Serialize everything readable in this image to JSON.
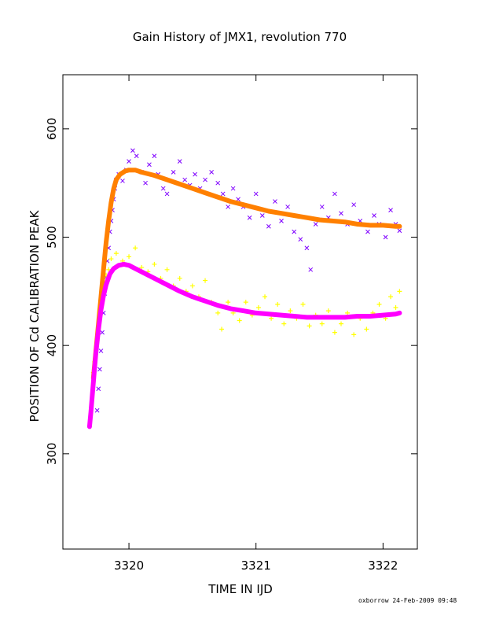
{
  "chart_data": {
    "type": "scatter",
    "title": "Gain History of JMX1, revolution 770",
    "xlabel": "TIME IN IJD",
    "ylabel": "POSITION OF Cd CALIBRATION PEAK",
    "xlim": [
      3319.48,
      3322.27
    ],
    "ylim": [
      212,
      650
    ],
    "xticks": [
      3320,
      3321,
      3322
    ],
    "xtick_labels": [
      "3320",
      "3321",
      "3322"
    ],
    "yticks": [
      300,
      400,
      500,
      600
    ],
    "ytick_labels": [
      "300",
      "400",
      "500",
      "600"
    ],
    "grid": false,
    "series": [
      {
        "kind": "scatter-x",
        "color": "#7f00ff",
        "points": [
          [
            3319.75,
            340
          ],
          [
            3319.76,
            360
          ],
          [
            3319.77,
            378
          ],
          [
            3319.78,
            395
          ],
          [
            3319.79,
            412
          ],
          [
            3319.8,
            430
          ],
          [
            3319.81,
            448
          ],
          [
            3319.82,
            463
          ],
          [
            3319.83,
            478
          ],
          [
            3319.84,
            490
          ],
          [
            3319.85,
            505
          ],
          [
            3319.86,
            515
          ],
          [
            3319.87,
            525
          ],
          [
            3319.88,
            535
          ],
          [
            3319.89,
            545
          ],
          [
            3319.9,
            553
          ],
          [
            3319.92,
            558
          ],
          [
            3319.95,
            552
          ],
          [
            3319.98,
            562
          ],
          [
            3320.0,
            570
          ],
          [
            3320.03,
            580
          ],
          [
            3320.06,
            575
          ],
          [
            3320.1,
            560
          ],
          [
            3320.13,
            550
          ],
          [
            3320.16,
            567
          ],
          [
            3320.2,
            575
          ],
          [
            3320.23,
            558
          ],
          [
            3320.27,
            545
          ],
          [
            3320.3,
            540
          ],
          [
            3320.35,
            560
          ],
          [
            3320.4,
            570
          ],
          [
            3320.44,
            553
          ],
          [
            3320.48,
            548
          ],
          [
            3320.52,
            558
          ],
          [
            3320.56,
            545
          ],
          [
            3320.6,
            553
          ],
          [
            3320.65,
            560
          ],
          [
            3320.7,
            550
          ],
          [
            3320.74,
            540
          ],
          [
            3320.78,
            528
          ],
          [
            3320.82,
            545
          ],
          [
            3320.86,
            535
          ],
          [
            3320.9,
            528
          ],
          [
            3320.95,
            518
          ],
          [
            3321.0,
            540
          ],
          [
            3321.05,
            520
          ],
          [
            3321.1,
            510
          ],
          [
            3321.15,
            533
          ],
          [
            3321.2,
            515
          ],
          [
            3321.25,
            528
          ],
          [
            3321.3,
            505
          ],
          [
            3321.35,
            498
          ],
          [
            3321.4,
            490
          ],
          [
            3321.43,
            470
          ],
          [
            3321.47,
            512
          ],
          [
            3321.52,
            528
          ],
          [
            3321.57,
            518
          ],
          [
            3321.62,
            540
          ],
          [
            3321.67,
            522
          ],
          [
            3321.72,
            512
          ],
          [
            3321.77,
            530
          ],
          [
            3321.82,
            515
          ],
          [
            3321.88,
            505
          ],
          [
            3321.93,
            520
          ],
          [
            3321.97,
            512
          ],
          [
            3322.02,
            500
          ],
          [
            3322.06,
            525
          ],
          [
            3322.1,
            512
          ],
          [
            3322.13,
            506
          ]
        ]
      },
      {
        "kind": "scatter-plus",
        "color": "#ffff00",
        "points": [
          [
            3319.72,
            375
          ],
          [
            3319.73,
            385
          ],
          [
            3319.74,
            395
          ],
          [
            3319.75,
            405
          ],
          [
            3319.76,
            415
          ],
          [
            3319.77,
            425
          ],
          [
            3319.78,
            435
          ],
          [
            3319.79,
            445
          ],
          [
            3319.8,
            455
          ],
          [
            3319.82,
            465
          ],
          [
            3319.84,
            470
          ],
          [
            3319.86,
            480
          ],
          [
            3319.9,
            485
          ],
          [
            3319.95,
            478
          ],
          [
            3320.0,
            482
          ],
          [
            3320.05,
            490
          ],
          [
            3320.1,
            472
          ],
          [
            3320.15,
            468
          ],
          [
            3320.2,
            475
          ],
          [
            3320.25,
            462
          ],
          [
            3320.3,
            470
          ],
          [
            3320.35,
            455
          ],
          [
            3320.4,
            462
          ],
          [
            3320.45,
            450
          ],
          [
            3320.5,
            455
          ],
          [
            3320.55,
            445
          ],
          [
            3320.6,
            460
          ],
          [
            3320.65,
            440
          ],
          [
            3320.7,
            430
          ],
          [
            3320.73,
            415
          ],
          [
            3320.78,
            440
          ],
          [
            3320.82,
            430
          ],
          [
            3320.87,
            423
          ],
          [
            3320.92,
            440
          ],
          [
            3320.97,
            428
          ],
          [
            3321.02,
            435
          ],
          [
            3321.07,
            445
          ],
          [
            3321.12,
            425
          ],
          [
            3321.17,
            438
          ],
          [
            3321.22,
            420
          ],
          [
            3321.27,
            432
          ],
          [
            3321.32,
            425
          ],
          [
            3321.37,
            438
          ],
          [
            3321.42,
            418
          ],
          [
            3321.47,
            428
          ],
          [
            3321.52,
            420
          ],
          [
            3321.57,
            432
          ],
          [
            3321.62,
            412
          ],
          [
            3321.67,
            420
          ],
          [
            3321.72,
            430
          ],
          [
            3321.77,
            410
          ],
          [
            3321.82,
            425
          ],
          [
            3321.87,
            415
          ],
          [
            3321.92,
            430
          ],
          [
            3321.97,
            438
          ],
          [
            3322.02,
            425
          ],
          [
            3322.06,
            445
          ],
          [
            3322.1,
            435
          ],
          [
            3322.13,
            450
          ]
        ]
      },
      {
        "kind": "fit-line",
        "color": "#ff8000",
        "points": [
          [
            3319.72,
            370
          ],
          [
            3319.74,
            395
          ],
          [
            3319.76,
            420
          ],
          [
            3319.78,
            445
          ],
          [
            3319.8,
            470
          ],
          [
            3319.82,
            495
          ],
          [
            3319.84,
            515
          ],
          [
            3319.86,
            532
          ],
          [
            3319.88,
            545
          ],
          [
            3319.9,
            553
          ],
          [
            3319.93,
            558
          ],
          [
            3319.97,
            561
          ],
          [
            3320.0,
            562
          ],
          [
            3320.05,
            562
          ],
          [
            3320.1,
            560
          ],
          [
            3320.2,
            557
          ],
          [
            3320.3,
            553
          ],
          [
            3320.4,
            549
          ],
          [
            3320.5,
            545
          ],
          [
            3320.6,
            541
          ],
          [
            3320.7,
            537
          ],
          [
            3320.8,
            533
          ],
          [
            3320.9,
            530
          ],
          [
            3321.0,
            527
          ],
          [
            3321.1,
            524
          ],
          [
            3321.2,
            522
          ],
          [
            3321.3,
            520
          ],
          [
            3321.4,
            518
          ],
          [
            3321.5,
            516
          ],
          [
            3321.6,
            515
          ],
          [
            3321.7,
            514
          ],
          [
            3321.8,
            512
          ],
          [
            3321.9,
            511
          ],
          [
            3322.0,
            511
          ],
          [
            3322.1,
            510
          ],
          [
            3322.13,
            510
          ]
        ]
      },
      {
        "kind": "fit-line",
        "color": "#ff00ff",
        "points": [
          [
            3319.69,
            325
          ],
          [
            3319.7,
            338
          ],
          [
            3319.71,
            352
          ],
          [
            3319.72,
            366
          ],
          [
            3319.73,
            380
          ],
          [
            3319.74,
            393
          ],
          [
            3319.76,
            415
          ],
          [
            3319.78,
            433
          ],
          [
            3319.8,
            446
          ],
          [
            3319.82,
            456
          ],
          [
            3319.85,
            466
          ],
          [
            3319.88,
            471
          ],
          [
            3319.92,
            474
          ],
          [
            3319.96,
            475
          ],
          [
            3320.0,
            474
          ],
          [
            3320.05,
            471
          ],
          [
            3320.1,
            468
          ],
          [
            3320.2,
            462
          ],
          [
            3320.3,
            456
          ],
          [
            3320.4,
            450
          ],
          [
            3320.5,
            445
          ],
          [
            3320.6,
            441
          ],
          [
            3320.7,
            437
          ],
          [
            3320.8,
            434
          ],
          [
            3320.9,
            432
          ],
          [
            3321.0,
            430
          ],
          [
            3321.1,
            429
          ],
          [
            3321.2,
            428
          ],
          [
            3321.3,
            427
          ],
          [
            3321.4,
            426
          ],
          [
            3321.5,
            426
          ],
          [
            3321.6,
            426
          ],
          [
            3321.7,
            426
          ],
          [
            3321.8,
            427
          ],
          [
            3321.9,
            427
          ],
          [
            3322.0,
            428
          ],
          [
            3322.1,
            429
          ],
          [
            3322.13,
            430
          ]
        ]
      }
    ]
  },
  "footer": {
    "stamp": "oxborrow 24-Feb-2009 09:48"
  }
}
